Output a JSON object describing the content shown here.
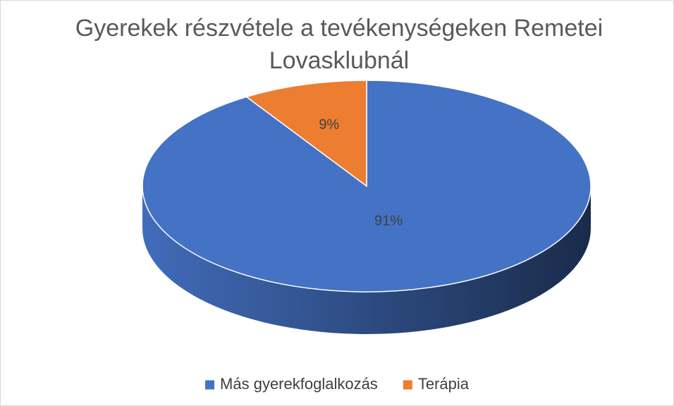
{
  "chart_data": {
    "type": "pie",
    "title": "Gyerekek részvétele a tevékenységeken Remetei Lovasklubnál",
    "categories": [
      "Más gyerekfoglalkozás",
      "Terápia"
    ],
    "values": [
      91,
      9
    ],
    "value_labels": [
      "91%",
      "9%"
    ],
    "colors": [
      "#4472c4",
      "#ed7d31"
    ],
    "legend": "bottom"
  }
}
